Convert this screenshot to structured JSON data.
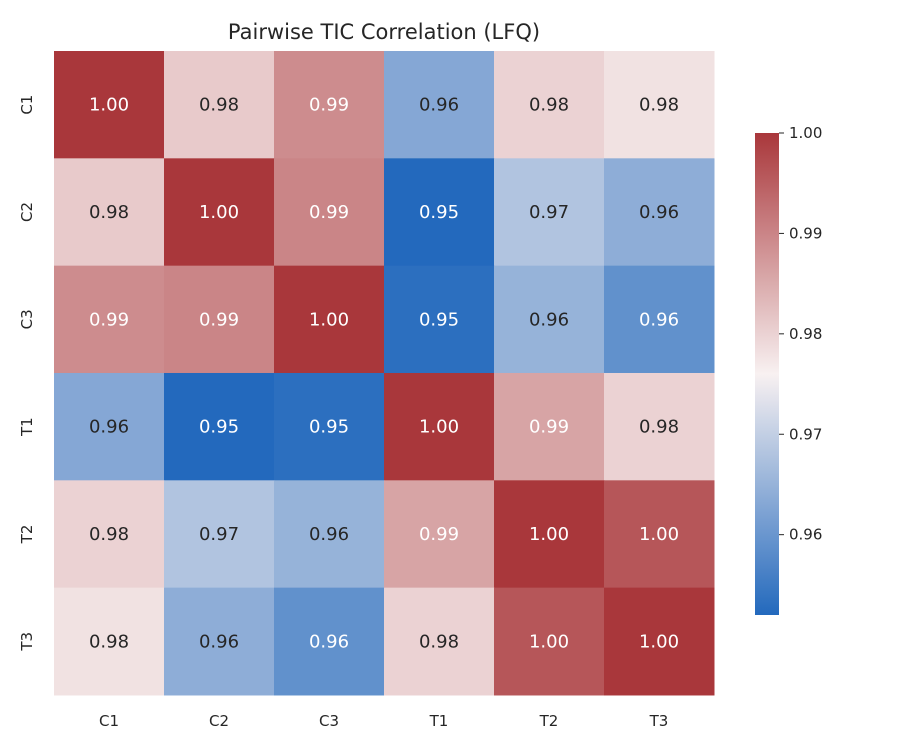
{
  "chart_data": {
    "type": "heatmap",
    "title": "Pairwise TIC Correlation (LFQ)",
    "xlabel": "",
    "ylabel": "",
    "x_categories": [
      "C1",
      "C2",
      "C3",
      "T1",
      "T2",
      "T3"
    ],
    "y_categories": [
      "C1",
      "C2",
      "C3",
      "T1",
      "T2",
      "T3"
    ],
    "values": [
      [
        1.0,
        0.981,
        0.989,
        0.963,
        0.98,
        0.978
      ],
      [
        0.981,
        1.0,
        0.99,
        0.952,
        0.968,
        0.964
      ],
      [
        0.989,
        0.99,
        1.0,
        0.953,
        0.965,
        0.959
      ],
      [
        0.963,
        0.952,
        0.953,
        1.0,
        0.986,
        0.98
      ],
      [
        0.98,
        0.968,
        0.965,
        0.986,
        1.0,
        0.996
      ],
      [
        0.978,
        0.964,
        0.959,
        0.98,
        0.996,
        1.0
      ]
    ],
    "annotations": [
      [
        "1.00",
        "0.98",
        "0.99",
        "0.96",
        "0.98",
        "0.98"
      ],
      [
        "0.98",
        "1.00",
        "0.99",
        "0.95",
        "0.97",
        "0.96"
      ],
      [
        "0.99",
        "0.99",
        "1.00",
        "0.95",
        "0.96",
        "0.96"
      ],
      [
        "0.96",
        "0.95",
        "0.95",
        "1.00",
        "0.99",
        "0.98"
      ],
      [
        "0.98",
        "0.97",
        "0.96",
        "0.99",
        "1.00",
        "1.00"
      ],
      [
        "0.98",
        "0.96",
        "0.96",
        "0.98",
        "1.00",
        "1.00"
      ]
    ],
    "colormap": "vlag",
    "colors": {
      "low": "#2369bd",
      "mid": "#f8f1f1",
      "high": "#a9373b"
    },
    "color_range": [
      0.952,
      1.0
    ],
    "colorbar": {
      "ticks": [
        0.96,
        0.97,
        0.98,
        0.99,
        1.0
      ],
      "tick_labels": [
        "0.96",
        "0.97",
        "0.98",
        "0.99",
        "1.00"
      ],
      "placement": "right"
    }
  }
}
